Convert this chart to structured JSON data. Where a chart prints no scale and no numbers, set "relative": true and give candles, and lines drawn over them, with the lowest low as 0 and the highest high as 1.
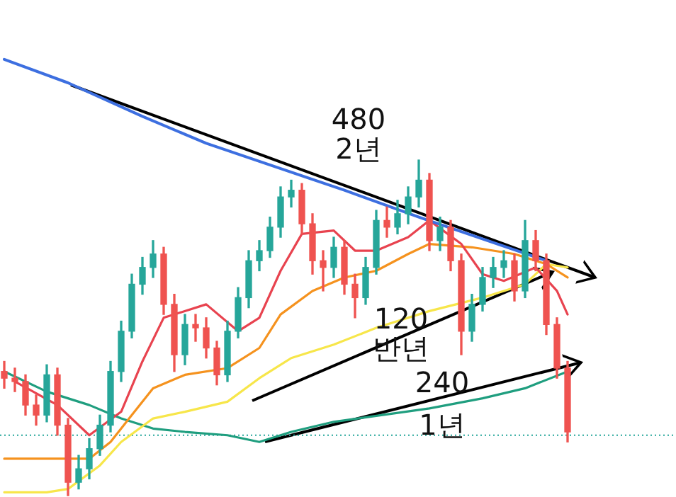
{
  "chart_data": {
    "type": "candlestick",
    "relative": true,
    "categories": [
      null,
      null,
      null,
      null,
      null,
      null,
      null,
      null,
      null,
      null,
      null,
      null,
      null,
      null,
      null,
      null,
      null,
      null,
      null,
      null,
      null,
      null,
      null,
      null,
      null,
      null,
      null,
      null,
      null,
      null,
      null,
      null,
      null,
      null,
      null,
      null,
      null,
      null,
      null,
      null,
      null,
      null,
      null,
      null,
      null,
      null,
      null,
      null,
      null,
      null,
      null,
      null,
      null,
      null
    ],
    "ohlc": [
      [
        0.37,
        0.4,
        0.32,
        0.35
      ],
      [
        0.35,
        0.38,
        0.31,
        0.34
      ],
      [
        0.34,
        0.36,
        0.24,
        0.27
      ],
      [
        0.27,
        0.3,
        0.21,
        0.24
      ],
      [
        0.24,
        0.39,
        0.22,
        0.36
      ],
      [
        0.36,
        0.38,
        0.18,
        0.21
      ],
      [
        0.21,
        0.23,
        0,
        0.04
      ],
      [
        0.04,
        0.12,
        0.02,
        0.08
      ],
      [
        0.08,
        0.17,
        0.05,
        0.14
      ],
      [
        0.14,
        0.24,
        0.12,
        0.21
      ],
      [
        0.21,
        0.4,
        0.19,
        0.37
      ],
      [
        0.37,
        0.52,
        0.34,
        0.49
      ],
      [
        0.49,
        0.66,
        0.47,
        0.63
      ],
      [
        0.63,
        0.71,
        0.6,
        0.68
      ],
      [
        0.68,
        0.76,
        0.65,
        0.72
      ],
      [
        0.72,
        0.74,
        0.54,
        0.57
      ],
      [
        0.57,
        0.6,
        0.37,
        0.42
      ],
      [
        0.42,
        0.54,
        0.39,
        0.51
      ],
      [
        0.51,
        0.54,
        0.46,
        0.5
      ],
      [
        0.5,
        0.53,
        0.41,
        0.44
      ],
      [
        0.44,
        0.46,
        0.33,
        0.36
      ],
      [
        0.36,
        0.52,
        0.34,
        0.49
      ],
      [
        0.49,
        0.62,
        0.47,
        0.59
      ],
      [
        0.59,
        0.73,
        0.56,
        0.7
      ],
      [
        0.7,
        0.76,
        0.67,
        0.73
      ],
      [
        0.73,
        0.83,
        0.71,
        0.8
      ],
      [
        0.8,
        0.92,
        0.77,
        0.89
      ],
      [
        0.89,
        0.94,
        0.86,
        0.91
      ],
      [
        0.91,
        0.93,
        0.78,
        0.81
      ],
      [
        0.81,
        0.84,
        0.66,
        0.7
      ],
      [
        0.7,
        0.73,
        0.61,
        0.68
      ],
      [
        0.68,
        0.77,
        0.65,
        0.74
      ],
      [
        0.74,
        0.76,
        0.6,
        0.63
      ],
      [
        0.63,
        0.66,
        0.53,
        0.59
      ],
      [
        0.59,
        0.71,
        0.57,
        0.68
      ],
      [
        0.68,
        0.85,
        0.66,
        0.82
      ],
      [
        0.82,
        0.86,
        0.77,
        0.8
      ],
      [
        0.8,
        0.88,
        0.78,
        0.84
      ],
      [
        0.84,
        0.92,
        0.81,
        0.89
      ],
      [
        0.89,
        1,
        0.86,
        0.94
      ],
      [
        0.94,
        0.96,
        0.73,
        0.76
      ],
      [
        0.76,
        0.83,
        0.73,
        0.8
      ],
      [
        0.8,
        0.82,
        0.67,
        0.7
      ],
      [
        0.7,
        0.72,
        0.42,
        0.49
      ],
      [
        0.49,
        0.6,
        0.46,
        0.57
      ],
      [
        0.57,
        0.68,
        0.55,
        0.65
      ],
      [
        0.65,
        0.71,
        0.62,
        0.68
      ],
      [
        0.68,
        0.73,
        0.65,
        0.7
      ],
      [
        0.7,
        0.72,
        0.58,
        0.61
      ],
      [
        0.61,
        0.82,
        0.59,
        0.76
      ],
      [
        0.76,
        0.79,
        0.67,
        0.7
      ],
      [
        0.7,
        0.72,
        0.48,
        0.51
      ],
      [
        0.51,
        0.53,
        0.35,
        0.38
      ],
      [
        0.38,
        0.4,
        0.16,
        0.19
      ]
    ],
    "colors": [
      "#ef5350",
      "#ef5350",
      "#ef5350",
      "#ef5350",
      "#26a69a",
      "#ef5350",
      "#ef5350",
      "#26a69a",
      "#26a69a",
      "#26a69a",
      "#26a69a",
      "#26a69a",
      "#26a69a",
      "#26a69a",
      "#26a69a",
      "#ef5350",
      "#ef5350",
      "#26a69a",
      "#ef5350",
      "#ef5350",
      "#ef5350",
      "#26a69a",
      "#26a69a",
      "#26a69a",
      "#26a69a",
      "#26a69a",
      "#26a69a",
      "#26a69a",
      "#ef5350",
      "#ef5350",
      "#ef5350",
      "#26a69a",
      "#ef5350",
      "#ef5350",
      "#26a69a",
      "#26a69a",
      "#ef5350",
      "#26a69a",
      "#26a69a",
      "#26a69a",
      "#ef5350",
      "#26a69a",
      "#ef5350",
      "#ef5350",
      "#26a69a",
      "#26a69a",
      "#26a69a",
      "#26a69a",
      "#ef5350",
      "#26a69a",
      "#ef5350",
      "#ef5350",
      "#ef5350",
      "#ef5350"
    ],
    "series": [
      {
        "type": "line",
        "color": "#3d6fe0",
        "values": [
          1.3,
          null,
          null,
          null,
          null,
          null,
          1.23,
          null,
          null,
          null,
          null,
          null,
          null,
          1.13,
          null,
          null,
          null,
          null,
          null,
          1.05,
          null,
          null,
          null,
          null,
          null,
          null,
          null,
          null,
          null,
          null,
          null,
          null,
          0.91,
          null,
          null,
          null,
          null,
          null,
          null,
          0.83,
          null,
          null,
          null,
          null,
          null,
          null,
          null,
          null,
          null,
          null,
          null,
          0.7,
          null,
          null
        ]
      },
      {
        "type": "line",
        "color": "#e8434f",
        "values": [
          null,
          0.34,
          null,
          null,
          null,
          0.27,
          null,
          null,
          0.18,
          null,
          null,
          0.25,
          null,
          0.4,
          null,
          0.53,
          null,
          null,
          null,
          0.57,
          null,
          null,
          0.49,
          null,
          0.53,
          null,
          0.67,
          null,
          0.78,
          null,
          null,
          0.79,
          null,
          0.73,
          null,
          0.73,
          null,
          null,
          0.77,
          null,
          0.82,
          null,
          null,
          0.75,
          null,
          0.66,
          null,
          0.64,
          null,
          null,
          0.68,
          null,
          0.61,
          0.54
        ]
      },
      {
        "type": "line",
        "color": "#f5921e",
        "values": [
          0.11,
          null,
          null,
          null,
          0.11,
          null,
          null,
          null,
          0.11,
          null,
          0.16,
          null,
          0.24,
          null,
          0.32,
          null,
          null,
          0.36,
          null,
          null,
          null,
          0.38,
          null,
          null,
          0.44,
          null,
          0.54,
          null,
          null,
          0.61,
          null,
          null,
          0.65,
          null,
          null,
          0.67,
          null,
          null,
          0.72,
          null,
          0.75,
          null,
          null,
          null,
          0.74,
          null,
          null,
          null,
          0.72,
          null,
          null,
          0.69,
          null,
          0.65
        ]
      },
      {
        "type": "line",
        "color": "#f7e64a",
        "values": [
          0.01,
          null,
          null,
          null,
          0.01,
          null,
          0.02,
          null,
          null,
          0.09,
          null,
          0.16,
          null,
          null,
          0.23,
          null,
          null,
          0.25,
          null,
          null,
          null,
          0.28,
          null,
          null,
          0.35,
          null,
          null,
          0.41,
          null,
          null,
          null,
          0.45,
          null,
          null,
          null,
          0.5,
          null,
          null,
          null,
          null,
          0.55,
          null,
          null,
          null,
          null,
          0.59,
          null,
          null,
          null,
          0.63,
          null,
          0.69,
          null,
          0.68
        ]
      },
      {
        "type": "line",
        "color": "#1f9e7f",
        "values": [
          0.37,
          null,
          null,
          null,
          0.31,
          null,
          null,
          null,
          0.27,
          null,
          null,
          0.23,
          null,
          null,
          0.2,
          null,
          null,
          0.19,
          null,
          null,
          null,
          0.18,
          null,
          null,
          0.16,
          null,
          null,
          0.19,
          null,
          null,
          null,
          0.22,
          null,
          null,
          null,
          null,
          null,
          null,
          null,
          null,
          0.26,
          null,
          null,
          null,
          null,
          0.29,
          null,
          null,
          null,
          0.32,
          null,
          null,
          null,
          0.37
        ]
      }
    ],
    "annotations": [
      "480\n2년",
      "120\n반년",
      "240\n1년"
    ],
    "ref_lines": [
      {
        "axis": "y",
        "value": 0.18,
        "color": "#26a69a",
        "line_style": "dotted"
      }
    ]
  }
}
